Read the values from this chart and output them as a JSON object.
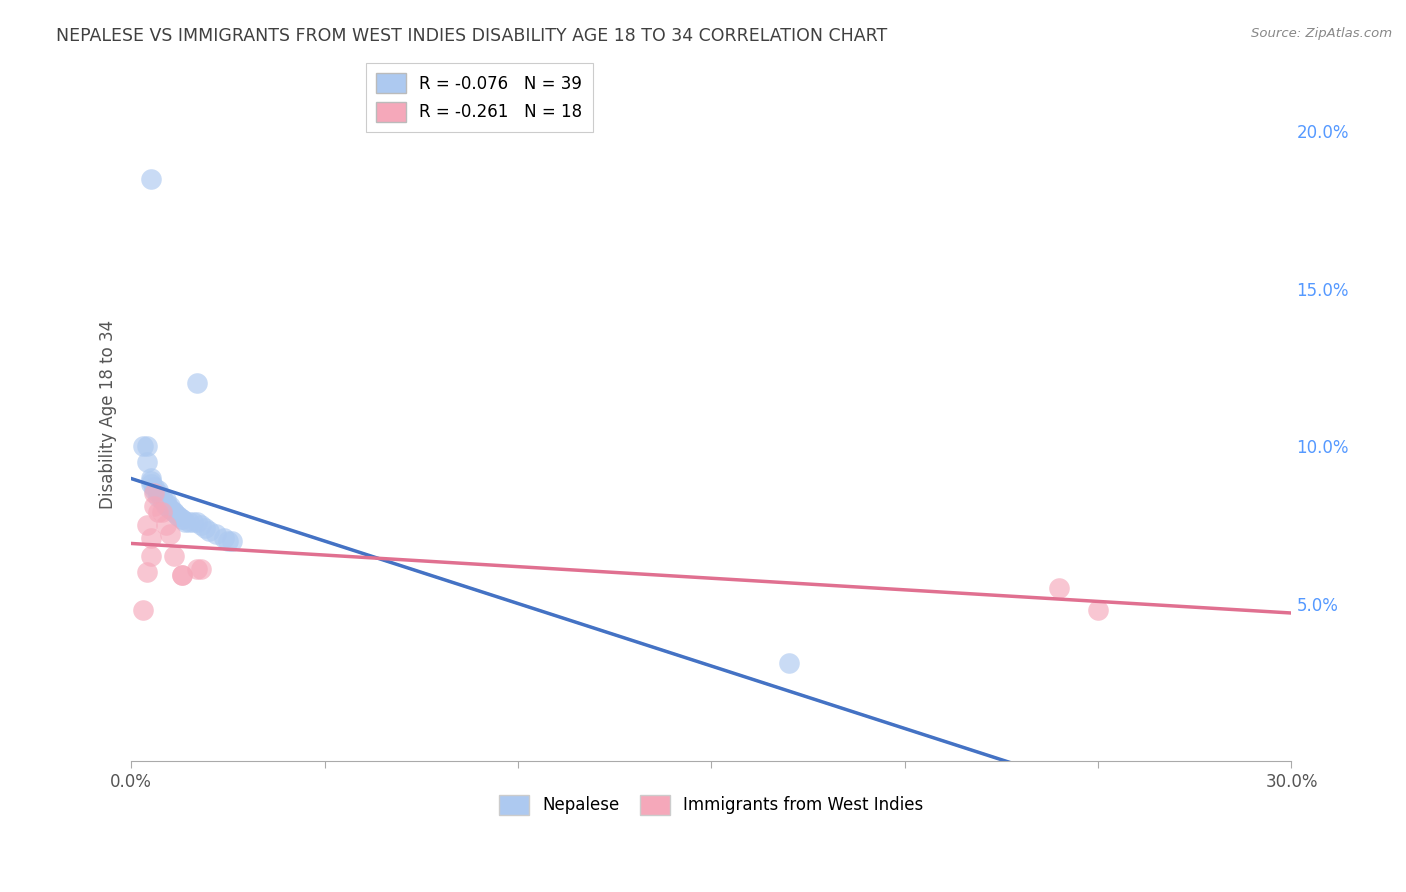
{
  "title": "NEPALESE VS IMMIGRANTS FROM WEST INDIES DISABILITY AGE 18 TO 34 CORRELATION CHART",
  "source": "Source: ZipAtlas.com",
  "ylabel": "Disability Age 18 to 34",
  "xlim": [
    0.0,
    0.3
  ],
  "ylim": [
    0.0,
    0.22
  ],
  "nepalese_R": "-0.076",
  "nepalese_N": "39",
  "westindies_R": "-0.261",
  "westindies_N": "18",
  "nepalese_color": "#adc9f0",
  "westindies_color": "#f5a8ba",
  "nepalese_line_color": "#4472c4",
  "westindies_line_color": "#e07090",
  "dashed_line_color": "#b0d0f8",
  "right_axis_color": "#5599ff",
  "grid_color": "#d8d8d8",
  "title_color": "#404040",
  "axis_label_color": "#555555",
  "background_color": "#ffffff",
  "nepalese_x": [
    0.003,
    0.004,
    0.004,
    0.005,
    0.005,
    0.005,
    0.006,
    0.006,
    0.007,
    0.007,
    0.007,
    0.008,
    0.008,
    0.009,
    0.009,
    0.009,
    0.01,
    0.01,
    0.01,
    0.011,
    0.011,
    0.012,
    0.012,
    0.013,
    0.013,
    0.014,
    0.015,
    0.016,
    0.017,
    0.018,
    0.019,
    0.02,
    0.022,
    0.024,
    0.025,
    0.026,
    0.017,
    0.17,
    0.005
  ],
  "nepalese_y": [
    0.1,
    0.1,
    0.095,
    0.09,
    0.089,
    0.088,
    0.087,
    0.086,
    0.086,
    0.085,
    0.084,
    0.084,
    0.083,
    0.083,
    0.082,
    0.081,
    0.081,
    0.08,
    0.08,
    0.079,
    0.079,
    0.078,
    0.078,
    0.077,
    0.077,
    0.076,
    0.076,
    0.076,
    0.12,
    0.075,
    0.074,
    0.073,
    0.072,
    0.071,
    0.07,
    0.07,
    0.076,
    0.031,
    0.185
  ],
  "westindies_x": [
    0.003,
    0.004,
    0.004,
    0.005,
    0.005,
    0.006,
    0.006,
    0.007,
    0.008,
    0.009,
    0.01,
    0.011,
    0.013,
    0.013,
    0.017,
    0.018,
    0.24,
    0.25
  ],
  "westindies_y": [
    0.048,
    0.075,
    0.06,
    0.071,
    0.065,
    0.085,
    0.081,
    0.079,
    0.079,
    0.075,
    0.072,
    0.065,
    0.059,
    0.059,
    0.061,
    0.061,
    0.055,
    0.048
  ]
}
